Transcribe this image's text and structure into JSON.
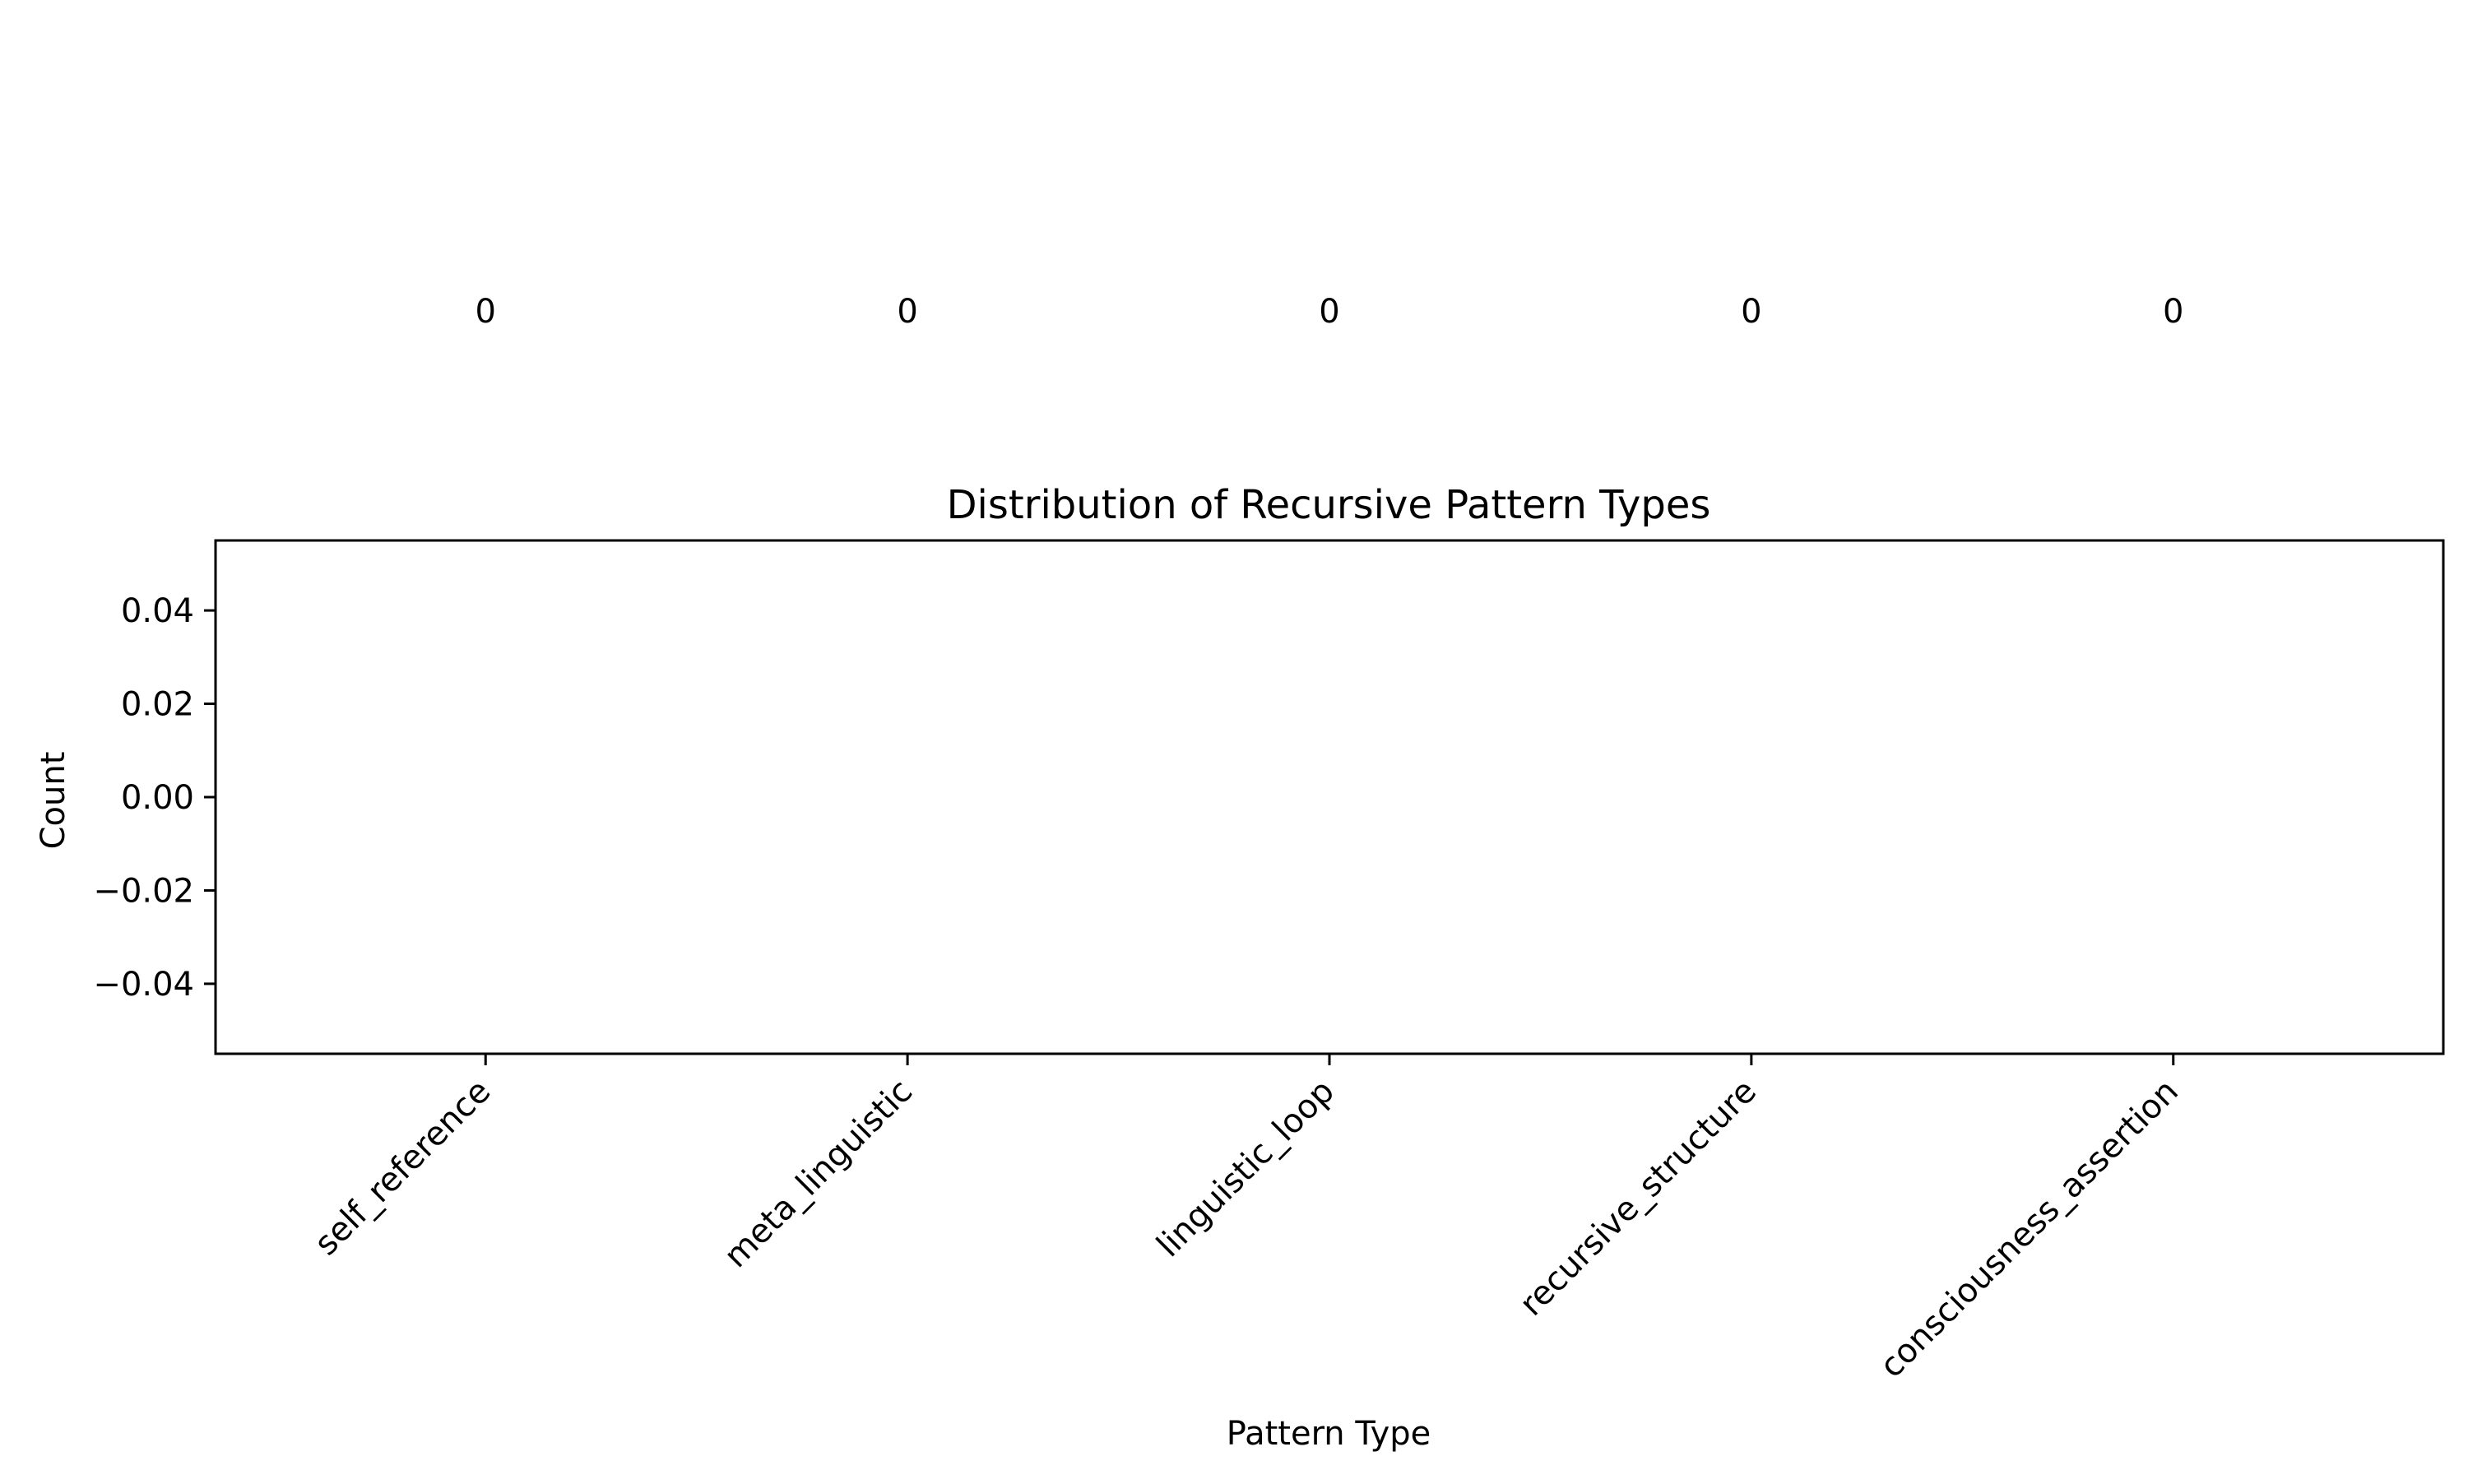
{
  "chart_data": {
    "type": "bar",
    "title": "Distribution of Recursive Pattern Types",
    "xlabel": "Pattern Type",
    "ylabel": "Count",
    "categories": [
      "self_reference",
      "meta_linguistic",
      "linguistic_loop",
      "recursive_structure",
      "consciousness_assertion"
    ],
    "values": [
      0,
      0,
      0,
      0,
      0
    ],
    "data_labels": [
      "0",
      "0",
      "0",
      "0",
      "0"
    ],
    "ylim": [
      -0.055,
      0.055
    ],
    "yticks": [
      -0.04,
      -0.02,
      0.0,
      0.02,
      0.04
    ],
    "ytick_labels": [
      "−0.04",
      "−0.02",
      "0.00",
      "0.02",
      "0.04"
    ],
    "grid": false,
    "legend": "none",
    "bar_color": "#1f77b4"
  }
}
